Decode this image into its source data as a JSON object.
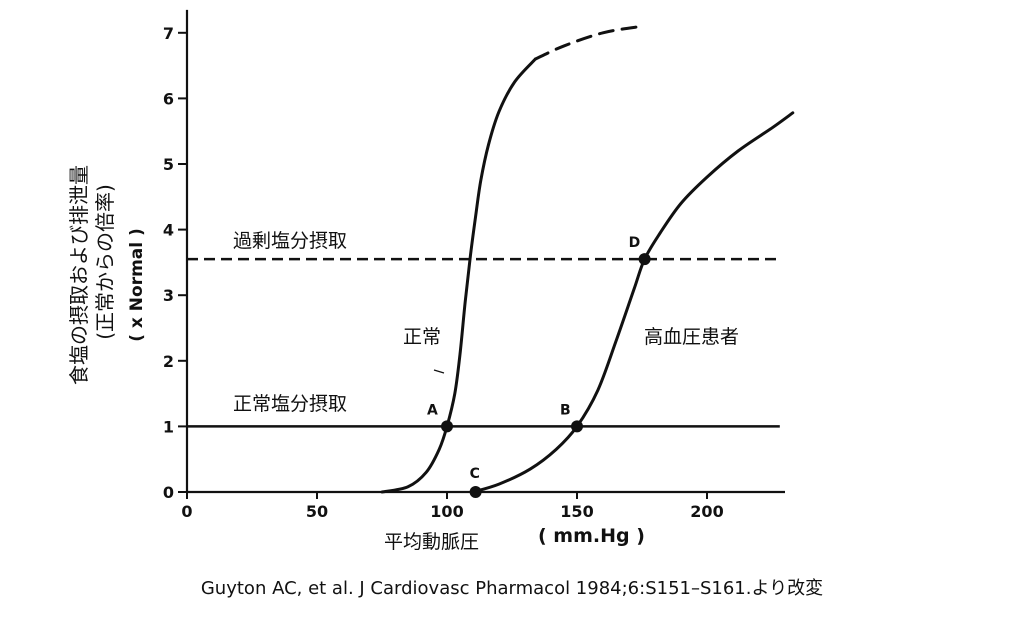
{
  "chart_data": {
    "type": "line",
    "xlabel": "平均動脈圧",
    "xunit": "( mm.Hg )",
    "ylabel": "食塩の摂取および排泄量",
    "ylabel_sub": "(正常からの倍率)",
    "ylabel_unit": "( x Normal )",
    "xlim": [
      0,
      230
    ],
    "ylim": [
      0,
      7.5
    ],
    "x_ticks": [
      0,
      50,
      100,
      150,
      200
    ],
    "y_ticks": [
      0,
      1,
      2,
      3,
      4,
      5,
      6,
      7
    ],
    "series": [
      {
        "name": "正常",
        "style": "solid",
        "x": [
          75,
          85,
          92,
          97,
          100,
          103,
          105,
          107,
          109,
          111,
          113,
          116,
          120,
          126,
          134
        ],
        "y": [
          0,
          0.08,
          0.3,
          0.65,
          1.0,
          1.5,
          2.1,
          2.9,
          3.6,
          4.2,
          4.75,
          5.3,
          5.8,
          6.25,
          6.6
        ]
      },
      {
        "name": "正常-extrapolated",
        "style": "dashed",
        "x": [
          134,
          145,
          160,
          175
        ],
        "y": [
          6.6,
          6.8,
          7.0,
          7.1
        ]
      },
      {
        "name": "高血圧患者",
        "style": "solid",
        "x": [
          110,
          120,
          132,
          142,
          150,
          158,
          165,
          172,
          176,
          182,
          190,
          200,
          212,
          225,
          233
        ],
        "y": [
          0,
          0.12,
          0.35,
          0.65,
          1.0,
          1.55,
          2.3,
          3.1,
          3.55,
          3.95,
          4.4,
          4.8,
          5.2,
          5.55,
          5.78
        ]
      }
    ],
    "hlines": [
      {
        "label": "過剰塩分摂取",
        "y": 3.55,
        "style": "dashed"
      },
      {
        "label": "正常塩分摂取",
        "y": 1.0,
        "style": "solid"
      }
    ],
    "points": [
      {
        "label": "A",
        "x": 100,
        "y": 1.0
      },
      {
        "label": "B",
        "x": 150,
        "y": 1.0
      },
      {
        "label": "C",
        "x": 111,
        "y": 0
      },
      {
        "label": "D",
        "x": 176,
        "y": 3.55
      }
    ],
    "annotations": {
      "normal_curve": "正常",
      "hypertensive_curve": "高血圧患者"
    },
    "grid": false,
    "legend": "none"
  },
  "citation": "Guyton AC, et al. J Cardiovasc Pharmacol 1984;6:S151–S161.より改変",
  "colors": {
    "ink": "#111111",
    "background": "#ffffff"
  }
}
